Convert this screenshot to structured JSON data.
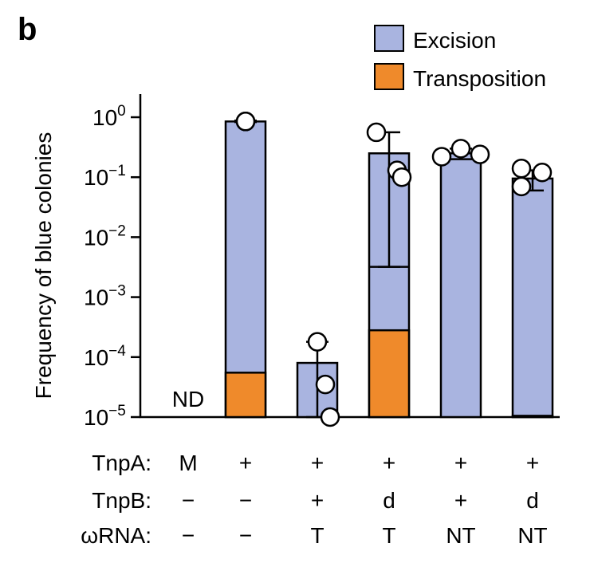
{
  "panel_label": "b",
  "colors": {
    "excision": "#a9b4e0",
    "transposition": "#ef8a2b",
    "outline": "#000000",
    "point_fill": "#ffffff"
  },
  "chart_data": {
    "type": "bar",
    "stacked": true,
    "yscale": "log",
    "ylabel": "Frequency of blue colonies",
    "ylim": [
      1e-05,
      1
    ],
    "yticks": [
      {
        "value": 1,
        "base": "10",
        "exp": "0"
      },
      {
        "value": 0.1,
        "base": "10",
        "exp": "−1"
      },
      {
        "value": 0.01,
        "base": "10",
        "exp": "−2"
      },
      {
        "value": 0.001,
        "base": "10",
        "exp": "−3"
      },
      {
        "value": 0.0001,
        "base": "10",
        "exp": "−4"
      },
      {
        "value": 1e-05,
        "base": "10",
        "exp": "−5"
      }
    ],
    "legend": {
      "placement": "top-right",
      "entries": [
        {
          "name": "Excision",
          "color": "#a9b4e0"
        },
        {
          "name": "Transposition",
          "color": "#ef8a2b"
        }
      ]
    },
    "row_labels": [
      "TnpA:",
      "TnpB:",
      "ωRNA:"
    ],
    "groups": [
      {
        "TnpA": "M",
        "TnpB": "−",
        "wRNA": "−",
        "excision": null,
        "transposition": null,
        "error": null,
        "points": [],
        "annotation": "ND"
      },
      {
        "TnpA": "+",
        "TnpB": "−",
        "wRNA": "−",
        "excision": 0.85,
        "transposition": 5.5e-05,
        "error": [
          0.83,
          0.88
        ],
        "points": [
          0.85,
          0.85,
          0.85
        ]
      },
      {
        "TnpA": "+",
        "TnpB": "+",
        "wRNA": "T",
        "excision": 8e-05,
        "transposition": null,
        "error": [
          1e-05,
          0.00018
        ],
        "points": [
          0.00018,
          3.5e-05,
          1e-05
        ]
      },
      {
        "TnpA": "+",
        "TnpB": "d",
        "wRNA": "T",
        "excision": 0.25,
        "transposition": 0.00028,
        "error": [
          0.0032,
          0.56
        ],
        "points": [
          0.56,
          0.13,
          0.1
        ],
        "inner_line": 0.0032
      },
      {
        "TnpA": "+",
        "TnpB": "+",
        "wRNA": "NT",
        "excision": 0.25,
        "transposition": null,
        "error": [
          0.2,
          0.3
        ],
        "points": [
          0.22,
          0.3,
          0.24
        ]
      },
      {
        "TnpA": "+",
        "TnpB": "d",
        "wRNA": "NT",
        "excision": 0.095,
        "transposition": 1.05e-05,
        "error": [
          0.06,
          0.13
        ],
        "points": [
          0.14,
          0.07,
          0.12
        ]
      }
    ]
  }
}
